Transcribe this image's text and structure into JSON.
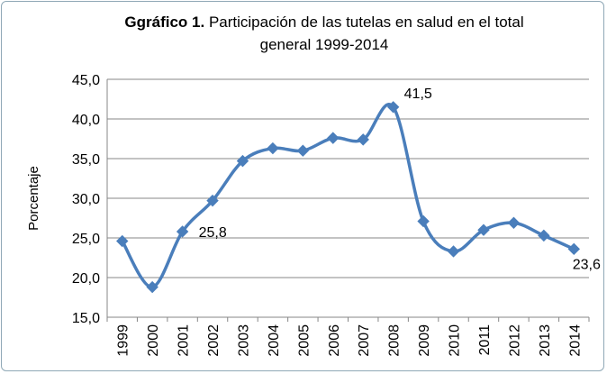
{
  "chart_data": {
    "type": "line",
    "title_bold": "Ggráfico 1.",
    "title_line1": "Participación de las tutelas en salud en el total",
    "title_line2": "general 1999-2014",
    "ylabel": "Porcentaje",
    "xlabel": "",
    "ylim": [
      15,
      45
    ],
    "yticks": [
      "15,0",
      "20,0",
      "25,0",
      "30,0",
      "35,0",
      "40,0",
      "45,0"
    ],
    "grid": true,
    "categories": [
      "1999",
      "2000",
      "2001",
      "2002",
      "2003",
      "2004",
      "2005",
      "2006",
      "2007",
      "2008",
      "2009",
      "2010",
      "2011",
      "2012",
      "2013",
      "2014"
    ],
    "series": [
      {
        "values": [
          24.6,
          18.8,
          25.8,
          29.7,
          34.7,
          36.3,
          36.0,
          37.6,
          37.4,
          41.5,
          27.1,
          23.3,
          26.0,
          26.9,
          25.3,
          23.6
        ]
      }
    ],
    "data_labels": [
      {
        "index": 2,
        "text": "25,8"
      },
      {
        "index": 9,
        "text": "41,5"
      },
      {
        "index": 15,
        "text": "23,6"
      }
    ],
    "series_color": "#4a7ebb"
  }
}
